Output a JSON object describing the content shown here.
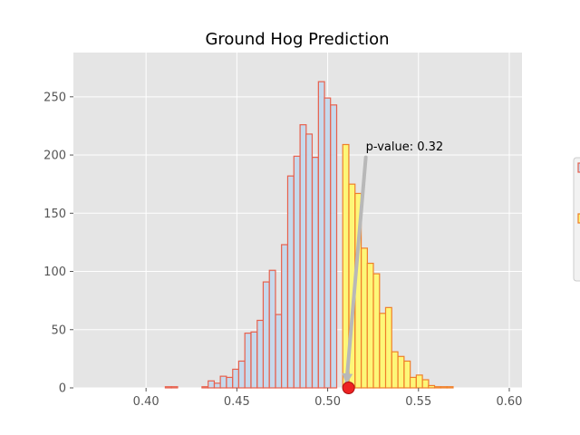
{
  "chart_data": {
    "type": "histogram",
    "title": "Ground Hog Prediction",
    "xlabel": "",
    "ylabel": "",
    "xlim": [
      0.36,
      0.607
    ],
    "ylim": [
      0,
      288
    ],
    "x_ticks": [
      0.4,
      0.45,
      0.5,
      0.55,
      0.6
    ],
    "x_tick_labels": [
      "0.40",
      "0.45",
      "0.50",
      "0.55",
      "0.60"
    ],
    "y_ticks": [
      0,
      50,
      100,
      150,
      200,
      250
    ],
    "y_tick_labels": [
      "0",
      "50",
      "100",
      "150",
      "200",
      "250"
    ],
    "grid": true,
    "bin_width": 0.00336,
    "series": [
      {
        "fill": "#c6d9ec",
        "edge": "#e8604c",
        "bins": [
          {
            "x": 0.3701,
            "y": 0
          },
          {
            "x": 0.3735,
            "y": 0
          },
          {
            "x": 0.3769,
            "y": 0
          },
          {
            "x": 0.3803,
            "y": 0
          },
          {
            "x": 0.3836,
            "y": 0
          },
          {
            "x": 0.387,
            "y": 0
          },
          {
            "x": 0.3904,
            "y": 0
          },
          {
            "x": 0.3937,
            "y": 0
          },
          {
            "x": 0.3971,
            "y": 0
          },
          {
            "x": 0.4005,
            "y": 0
          },
          {
            "x": 0.4039,
            "y": 0
          },
          {
            "x": 0.4072,
            "y": 0
          },
          {
            "x": 0.4106,
            "y": 1
          },
          {
            "x": 0.414,
            "y": 1
          },
          {
            "x": 0.4173,
            "y": 0
          },
          {
            "x": 0.4207,
            "y": 0
          },
          {
            "x": 0.4241,
            "y": 0
          },
          {
            "x": 0.4275,
            "y": 0
          },
          {
            "x": 0.4308,
            "y": 1
          },
          {
            "x": 0.4342,
            "y": 6
          },
          {
            "x": 0.4376,
            "y": 4
          },
          {
            "x": 0.4409,
            "y": 10
          },
          {
            "x": 0.4443,
            "y": 9
          },
          {
            "x": 0.4477,
            "y": 16
          },
          {
            "x": 0.451,
            "y": 23
          },
          {
            "x": 0.4544,
            "y": 47
          },
          {
            "x": 0.4578,
            "y": 48
          },
          {
            "x": 0.4612,
            "y": 58
          },
          {
            "x": 0.4645,
            "y": 91
          },
          {
            "x": 0.4679,
            "y": 101
          },
          {
            "x": 0.4713,
            "y": 63
          },
          {
            "x": 0.4746,
            "y": 123
          },
          {
            "x": 0.478,
            "y": 182
          },
          {
            "x": 0.4814,
            "y": 199
          },
          {
            "x": 0.4848,
            "y": 226
          },
          {
            "x": 0.4881,
            "y": 218
          },
          {
            "x": 0.4915,
            "y": 198
          },
          {
            "x": 0.4949,
            "y": 263
          },
          {
            "x": 0.4982,
            "y": 249
          },
          {
            "x": 0.5016,
            "y": 243
          },
          {
            "x": 0.505,
            "y": 0
          }
        ]
      },
      {
        "fill": "#fdf778",
        "edge": "#f07f2a",
        "bins": [
          {
            "x": 0.5083,
            "y": 209
          },
          {
            "x": 0.5117,
            "y": 175
          },
          {
            "x": 0.5151,
            "y": 167
          },
          {
            "x": 0.5185,
            "y": 120
          },
          {
            "x": 0.5218,
            "y": 107
          },
          {
            "x": 0.5252,
            "y": 98
          },
          {
            "x": 0.5286,
            "y": 64
          },
          {
            "x": 0.5319,
            "y": 69
          },
          {
            "x": 0.5353,
            "y": 31
          },
          {
            "x": 0.5387,
            "y": 27
          },
          {
            "x": 0.5421,
            "y": 23
          },
          {
            "x": 0.5454,
            "y": 9
          },
          {
            "x": 0.5488,
            "y": 11
          },
          {
            "x": 0.5522,
            "y": 7
          },
          {
            "x": 0.5555,
            "y": 2
          },
          {
            "x": 0.5589,
            "y": 1
          },
          {
            "x": 0.5623,
            "y": 1
          },
          {
            "x": 0.5657,
            "y": 1
          },
          {
            "x": 0.569,
            "y": 0
          },
          {
            "x": 0.5724,
            "y": 0
          },
          {
            "x": 0.5758,
            "y": 0
          },
          {
            "x": 0.5791,
            "y": 0
          },
          {
            "x": 0.5825,
            "y": 0
          },
          {
            "x": 0.5859,
            "y": 0
          },
          {
            "x": 0.5893,
            "y": 0
          }
        ]
      }
    ],
    "observed_value": {
      "x": 0.5115,
      "y": 0,
      "color": "#ee2222"
    },
    "annotation": {
      "text": "p-value: 0.32",
      "text_x": 0.521,
      "text_y": 204,
      "arrow_from": {
        "x": 0.521,
        "y": 198
      },
      "arrow_to": {
        "x": 0.5103,
        "y": 3
      },
      "arrow_color": "#b8b8b8"
    },
    "legend": {
      "placement": "center right, clipped at edge",
      "entries": [
        {
          "swatch": "#c6d9ec",
          "edge": "#e8604c"
        },
        {
          "swatch": "#fdf778",
          "edge": "#f07f2a"
        }
      ]
    },
    "colors": {
      "plot_background": "#e5e5e5",
      "grid": "#ffffff",
      "figure_background": "#ffffff"
    }
  }
}
